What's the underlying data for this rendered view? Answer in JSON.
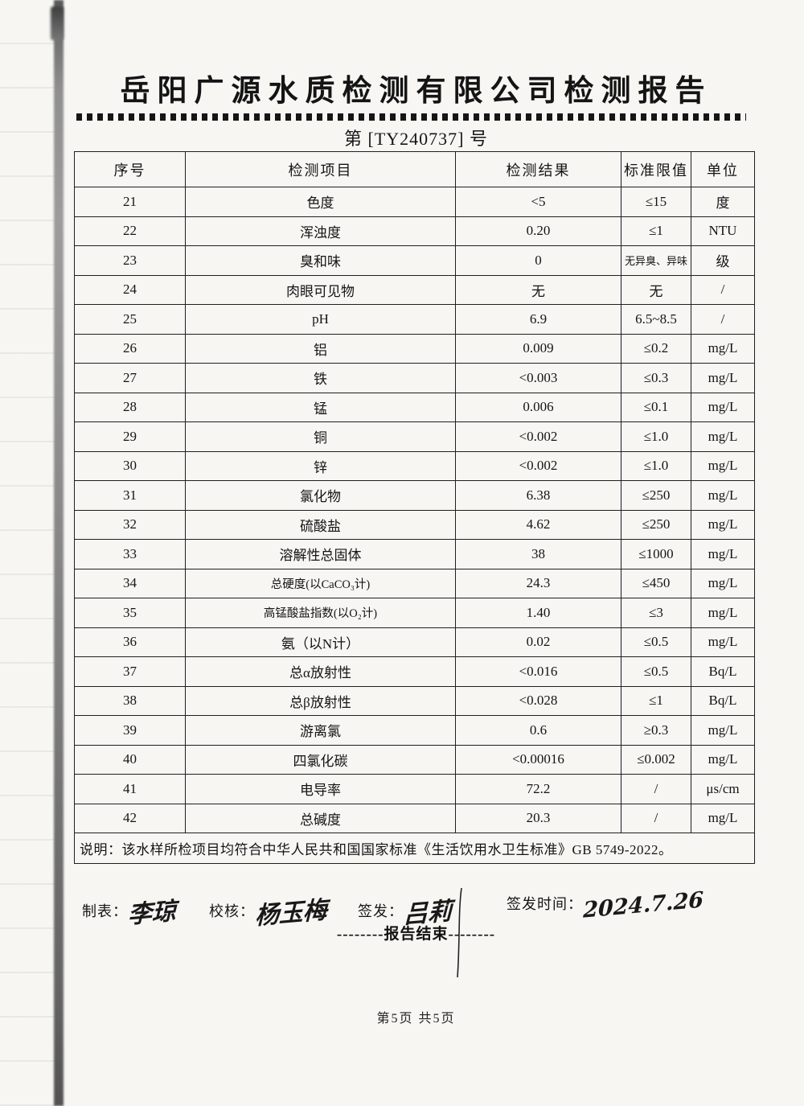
{
  "page": {
    "title": "岳阳广源水质检测有限公司检测报告",
    "report_no": "第 [TY240737] 号",
    "end_line": "--------报告结束--------",
    "footer_page": "第5页  共5页"
  },
  "table": {
    "headers": [
      "序号",
      "检测项目",
      "检测结果",
      "标准限值",
      "单位"
    ],
    "rows": [
      [
        "21",
        "色度",
        "<5",
        "≤15",
        "度"
      ],
      [
        "22",
        "浑浊度",
        "0.20",
        "≤1",
        "NTU"
      ],
      [
        "23",
        "臭和味",
        "0",
        "无异臭、异味",
        "级"
      ],
      [
        "24",
        "肉眼可见物",
        "无",
        "无",
        "/"
      ],
      [
        "25",
        "pH",
        "6.9",
        "6.5~8.5",
        "/"
      ],
      [
        "26",
        "铝",
        "0.009",
        "≤0.2",
        "mg/L"
      ],
      [
        "27",
        "铁",
        "<0.003",
        "≤0.3",
        "mg/L"
      ],
      [
        "28",
        "锰",
        "0.006",
        "≤0.1",
        "mg/L"
      ],
      [
        "29",
        "铜",
        "<0.002",
        "≤1.0",
        "mg/L"
      ],
      [
        "30",
        "锌",
        "<0.002",
        "≤1.0",
        "mg/L"
      ],
      [
        "31",
        "氯化物",
        "6.38",
        "≤250",
        "mg/L"
      ],
      [
        "32",
        "硫酸盐",
        "4.62",
        "≤250",
        "mg/L"
      ],
      [
        "33",
        "溶解性总固体",
        "38",
        "≤1000",
        "mg/L"
      ],
      [
        "34",
        "总硬度(以CaCO₃计)",
        "24.3",
        "≤450",
        "mg/L"
      ],
      [
        "35",
        "高锰酸盐指数(以O₂计)",
        "1.40",
        "≤3",
        "mg/L"
      ],
      [
        "36",
        "氨（以N计）",
        "0.02",
        "≤0.5",
        "mg/L"
      ],
      [
        "37",
        "总α放射性",
        "<0.016",
        "≤0.5",
        "Bq/L"
      ],
      [
        "38",
        "总β放射性",
        "<0.028",
        "≤1",
        "Bq/L"
      ],
      [
        "39",
        "游离氯",
        "0.6",
        "≥0.3",
        "mg/L"
      ],
      [
        "40",
        "四氯化碳",
        "<0.00016",
        "≤0.002",
        "mg/L"
      ],
      [
        "41",
        "电导率",
        "72.2",
        "/",
        "μs/cm"
      ],
      [
        "42",
        "总碱度",
        "20.3",
        "/",
        "mg/L"
      ]
    ],
    "note": "说明：该水样所检项目均符合中华人民共和国国家标准《生活饮用水卫生标准》GB 5749-2022。"
  },
  "signatures": {
    "prepared_label": "制表：",
    "prepared_name": "李琼",
    "checked_label": "校核：",
    "checked_name": "杨玉梅",
    "issued_label": "签发：",
    "issued_name": "吕莉",
    "issue_time_label": "签发时间：",
    "issue_time": "2024.7.26"
  }
}
